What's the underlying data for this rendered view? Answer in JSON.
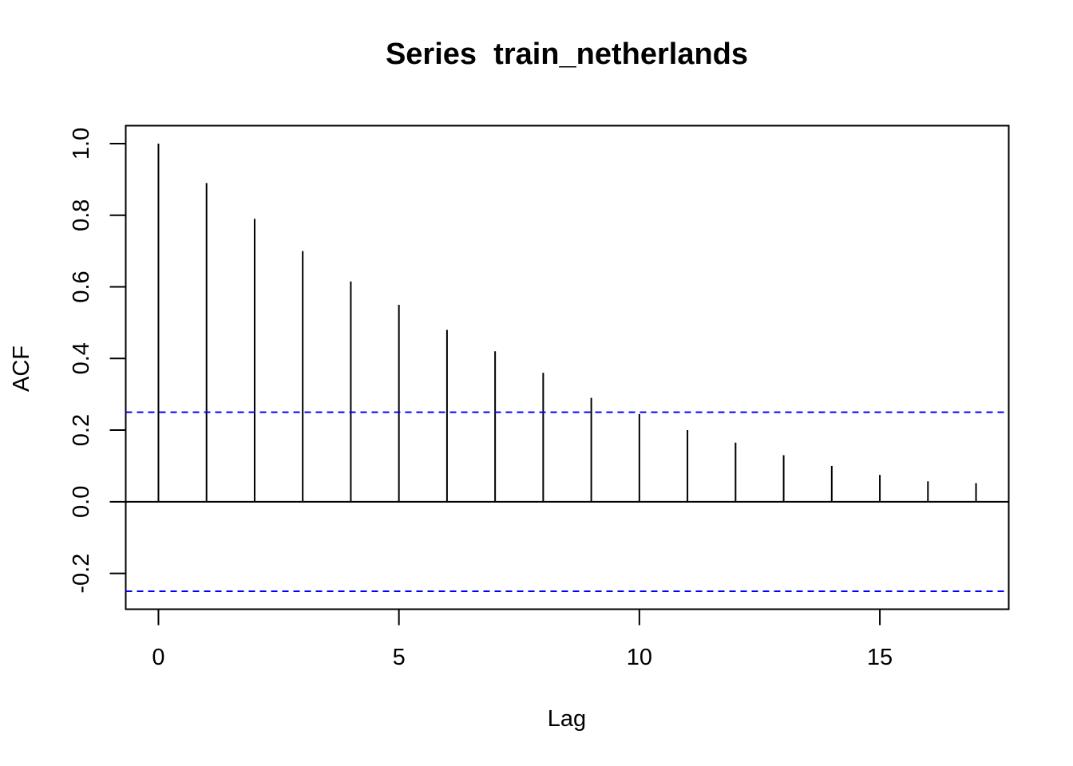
{
  "chart_data": {
    "type": "bar",
    "subtype": "acf-lollipop",
    "title": "Series  train_netherlands",
    "xlabel": "Lag",
    "ylabel": "ACF",
    "x": [
      0,
      1,
      2,
      3,
      4,
      5,
      6,
      7,
      8,
      9,
      10,
      11,
      12,
      13,
      14,
      15,
      16,
      17
    ],
    "values": [
      1.0,
      0.89,
      0.79,
      0.7,
      0.615,
      0.55,
      0.48,
      0.42,
      0.36,
      0.29,
      0.245,
      0.2,
      0.165,
      0.13,
      0.1,
      0.075,
      0.057,
      0.052
    ],
    "confidence_bounds": [
      0.25,
      -0.25
    ],
    "xlim": [
      -0.68,
      17.68
    ],
    "ylim": [
      -0.3,
      1.05
    ],
    "xticks": [
      0,
      5,
      10,
      15
    ],
    "xtick_labels": [
      "0",
      "5",
      "10",
      "15"
    ],
    "yticks": [
      -0.2,
      0.0,
      0.2,
      0.4,
      0.6,
      0.8,
      1.0
    ],
    "ytick_labels": [
      "-0.2",
      "0.0",
      "0.2",
      "0.4",
      "0.6",
      "0.8",
      "1.0"
    ],
    "colors": {
      "bars": "#000000",
      "zero_line": "#000000",
      "confidence": "#0000ff"
    },
    "grid": false
  }
}
